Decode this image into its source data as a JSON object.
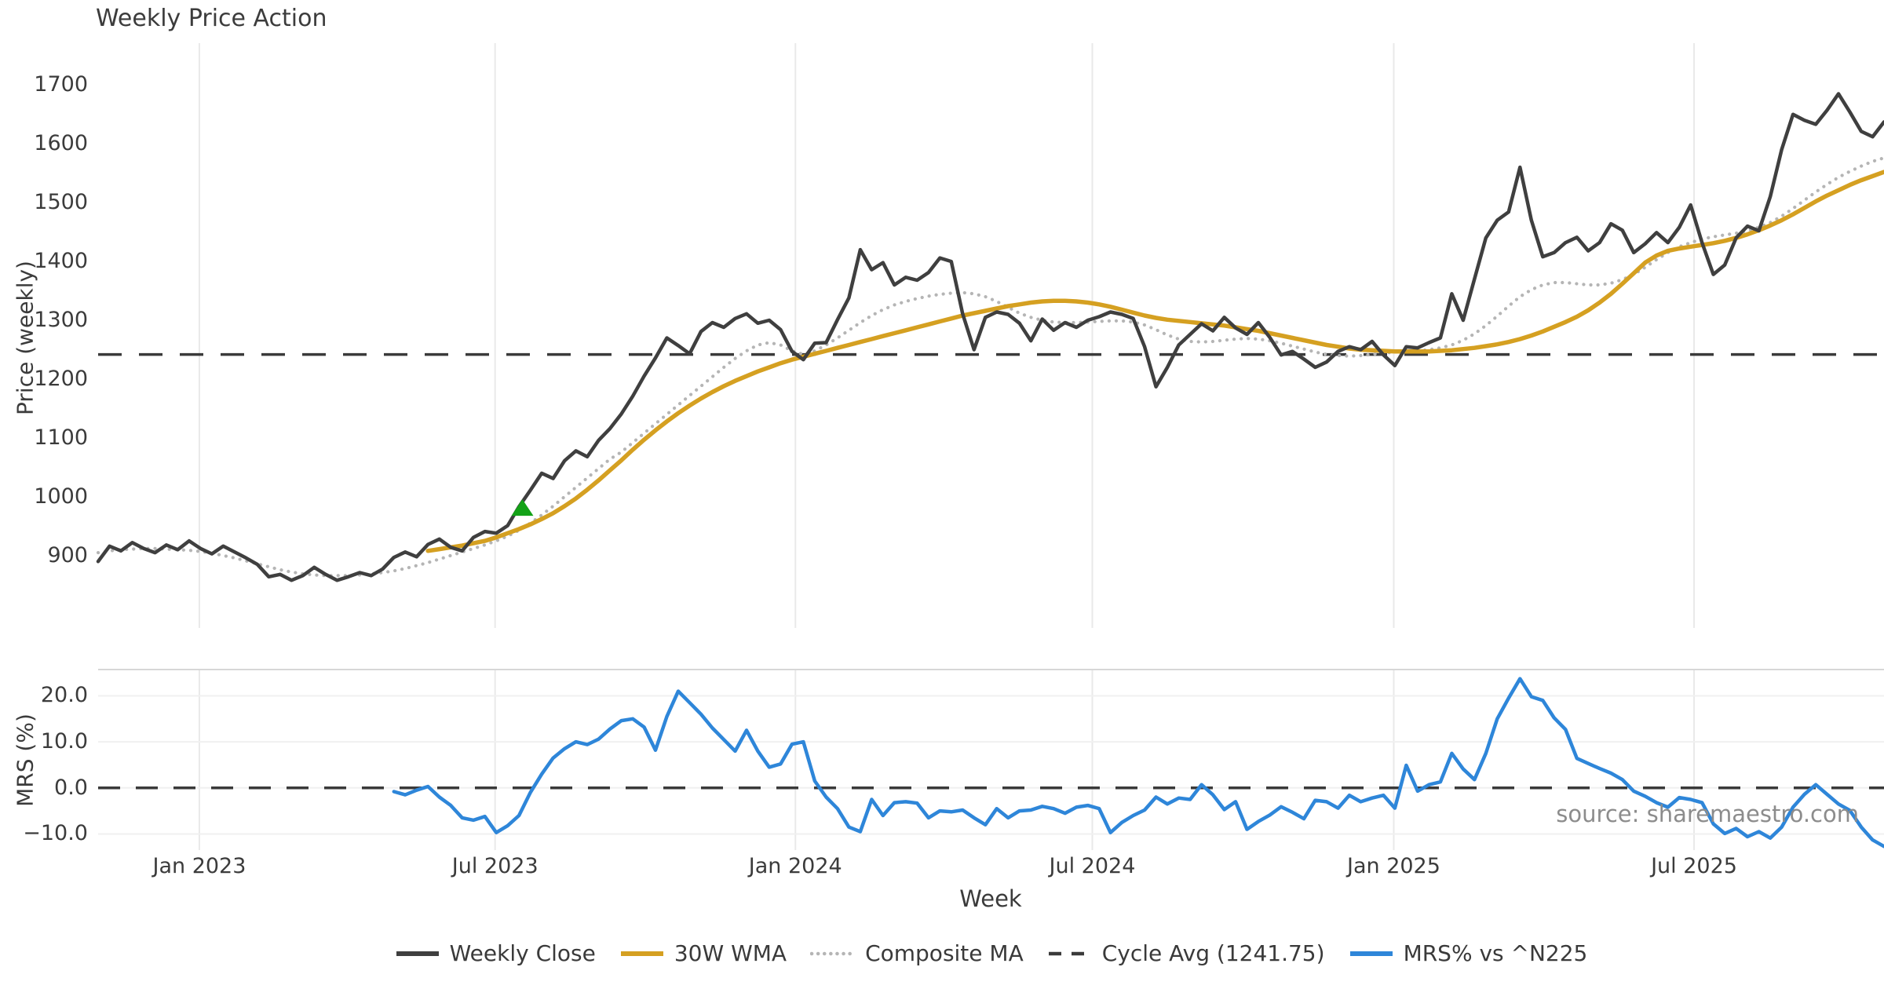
{
  "title": "Weekly Price Action",
  "source_credit": "source: sharemaestro.com",
  "colors": {
    "weekly_close": "#3f3f3f",
    "wma_30w": "#d5a021",
    "composite_ma": "#b5b5b5",
    "cycle_avg": "#3a3a3a",
    "mrs": "#2e86d9",
    "buy_marker": "#13a217",
    "gridline": "#e9e9e9",
    "hgridline": "#f0f0f0",
    "panel_border": "#d7d7d7",
    "text": "#3b3b3b",
    "source_text": "#8c8c8c"
  },
  "legend": [
    {
      "label": "Weekly Close",
      "series": "weekly_close",
      "style": "solid"
    },
    {
      "label": "30W WMA",
      "series": "wma_30w",
      "style": "solid"
    },
    {
      "label": "Composite MA",
      "series": "composite_ma",
      "style": "dotted"
    },
    {
      "label": "Cycle Avg (1241.75)",
      "series": "cycle_avg",
      "style": "dashed"
    },
    {
      "label": "MRS% vs ^N225",
      "series": "mrs",
      "style": "solid"
    }
  ],
  "chart_data": [
    {
      "type": "line",
      "title": "Weekly Price Action",
      "ylabel": "Price (weekly)",
      "xlabel": "Week",
      "ylim": [
        777,
        1771
      ],
      "grid": "vertical-only",
      "legend_position": "bottom-center",
      "weeks_total": 158,
      "y_ticks": [
        {
          "label": "1700",
          "value": 1700
        },
        {
          "label": "1600",
          "value": 1600
        },
        {
          "label": "1500",
          "value": 1500
        },
        {
          "label": "1400",
          "value": 1400
        },
        {
          "label": "1300",
          "value": 1300
        },
        {
          "label": "1200",
          "value": 1200
        },
        {
          "label": "1100",
          "value": 1100
        },
        {
          "label": "1000",
          "value": 1000
        },
        {
          "label": "900",
          "value": 900
        }
      ],
      "x_ticks": [
        {
          "label": "Jan 2023",
          "week": 8.9
        },
        {
          "label": "Jul 2023",
          "week": 34.9
        },
        {
          "label": "Jan 2024",
          "week": 61.3
        },
        {
          "label": "Jul 2024",
          "week": 87.4
        },
        {
          "label": "Jan 2025",
          "week": 113.9
        },
        {
          "label": "Jul 2025",
          "week": 140.3
        }
      ],
      "hline": {
        "label": "Cycle Avg (1241.75)",
        "value": 1241.75,
        "style": "dashed"
      },
      "marker": {
        "name": "buy-signal-triangle",
        "shape": "triangle-up",
        "week": 37.3,
        "value": 981
      },
      "series": [
        {
          "name": "Weekly Close",
          "color": "weekly_close",
          "style": "solid",
          "start_week": 0,
          "values": [
            890,
            916,
            908,
            922,
            912,
            905,
            918,
            910,
            925,
            912,
            903,
            916,
            906,
            896,
            885,
            864,
            868,
            858,
            866,
            880,
            868,
            858,
            864,
            871,
            866,
            877,
            897,
            906,
            898,
            919,
            928,
            914,
            908,
            931,
            941,
            938,
            951,
            983,
            1011,
            1040,
            1031,
            1061,
            1078,
            1068,
            1096,
            1116,
            1141,
            1171,
            1205,
            1236,
            1270,
            1257,
            1243,
            1281,
            1296,
            1288,
            1303,
            1311,
            1295,
            1300,
            1284,
            1247,
            1233,
            1261,
            1262,
            1301,
            1338,
            1420,
            1386,
            1398,
            1360,
            1373,
            1368,
            1381,
            1406,
            1400,
            1311,
            1250,
            1305,
            1314,
            1310,
            1295,
            1265,
            1302,
            1283,
            1296,
            1288,
            1300,
            1306,
            1314,
            1310,
            1303,
            1255,
            1187,
            1220,
            1258,
            1276,
            1294,
            1282,
            1305,
            1287,
            1276,
            1296,
            1271,
            1241,
            1247,
            1234,
            1220,
            1229,
            1247,
            1255,
            1250,
            1264,
            1241,
            1223,
            1255,
            1253,
            1262,
            1270,
            1345,
            1300,
            1370,
            1440,
            1470,
            1484,
            1560,
            1470,
            1408,
            1415,
            1432,
            1441,
            1418,
            1432,
            1464,
            1453,
            1415,
            1430,
            1449,
            1432,
            1458,
            1496,
            1432,
            1378,
            1394,
            1440,
            1460,
            1452,
            1510,
            1590,
            1650,
            1640,
            1633,
            1657,
            1685,
            1654,
            1621,
            1612,
            1637
          ]
        },
        {
          "name": "30W WMA",
          "color": "wma_30w",
          "style": "solid",
          "start_week": 29,
          "values": [
            908,
            911,
            914,
            917,
            921,
            925,
            931,
            938,
            945,
            953,
            962,
            972,
            984,
            997,
            1012,
            1028,
            1045,
            1062,
            1080,
            1097,
            1113,
            1128,
            1142,
            1155,
            1167,
            1178,
            1188,
            1197,
            1205,
            1213,
            1220,
            1227,
            1233,
            1238,
            1243,
            1248,
            1253,
            1258,
            1263,
            1268,
            1273,
            1278,
            1283,
            1288,
            1293,
            1298,
            1303,
            1308,
            1312,
            1316,
            1320,
            1324,
            1327,
            1330,
            1332,
            1333,
            1333,
            1332,
            1330,
            1327,
            1323,
            1318,
            1313,
            1308,
            1304,
            1301,
            1299,
            1297,
            1295,
            1293,
            1291,
            1288,
            1285,
            1282,
            1278,
            1274,
            1270,
            1266,
            1262,
            1258,
            1255,
            1252,
            1250,
            1249,
            1248,
            1247,
            1247,
            1247,
            1247,
            1248,
            1249,
            1251,
            1253,
            1256,
            1259,
            1263,
            1268,
            1274,
            1281,
            1289,
            1297,
            1306,
            1317,
            1330,
            1345,
            1362,
            1380,
            1398,
            1410,
            1418,
            1422,
            1425,
            1428,
            1431,
            1435,
            1440,
            1446,
            1453,
            1461,
            1470,
            1480,
            1491,
            1502,
            1512,
            1521,
            1530,
            1538,
            1545,
            1552
          ]
        },
        {
          "name": "Composite MA",
          "color": "composite_ma",
          "style": "dotted",
          "start_week": 0,
          "values": [
            905,
            908,
            910,
            911,
            912,
            912,
            911,
            910,
            909,
            907,
            904,
            900,
            896,
            891,
            886,
            881,
            876,
            872,
            869,
            867,
            866,
            866,
            866,
            867,
            869,
            871,
            874,
            878,
            883,
            888,
            894,
            900,
            906,
            912,
            918,
            925,
            933,
            943,
            955,
            969,
            984,
            1000,
            1016,
            1032,
            1048,
            1064,
            1076,
            1092,
            1108,
            1124,
            1140,
            1156,
            1172,
            1188,
            1204,
            1220,
            1235,
            1248,
            1258,
            1262,
            1258,
            1248,
            1242,
            1248,
            1258,
            1270,
            1283,
            1296,
            1308,
            1318,
            1326,
            1332,
            1337,
            1341,
            1344,
            1346,
            1347,
            1345,
            1340,
            1332,
            1322,
            1312,
            1305,
            1300,
            1297,
            1296,
            1296,
            1297,
            1298,
            1299,
            1299,
            1297,
            1292,
            1284,
            1275,
            1268,
            1264,
            1263,
            1264,
            1266,
            1268,
            1269,
            1268,
            1265,
            1261,
            1256,
            1251,
            1246,
            1242,
            1240,
            1239,
            1240,
            1242,
            1244,
            1246,
            1247,
            1248,
            1250,
            1253,
            1258,
            1266,
            1277,
            1291,
            1307,
            1324,
            1340,
            1352,
            1360,
            1364,
            1364,
            1362,
            1360,
            1360,
            1363,
            1369,
            1378,
            1390,
            1403,
            1415,
            1425,
            1432,
            1438,
            1442,
            1445,
            1448,
            1452,
            1458,
            1466,
            1477,
            1490,
            1504,
            1518,
            1531,
            1543,
            1553,
            1562,
            1570,
            1576
          ]
        }
      ]
    },
    {
      "type": "line",
      "ylabel": "MRS (%)",
      "xlabel": "Week",
      "ylim": [
        -13.5,
        25.7
      ],
      "weeks_total": 158,
      "y_ticks": [
        {
          "label": "20.0",
          "value": 20
        },
        {
          "label": "10.0",
          "value": 10
        },
        {
          "label": "0.0",
          "value": 0
        },
        {
          "label": "−10.0",
          "value": -10
        }
      ],
      "hline": {
        "label": "zero-line",
        "value": 0,
        "style": "dashed"
      },
      "series": [
        {
          "name": "MRS% vs ^N225",
          "color": "mrs",
          "style": "solid",
          "start_week": 26,
          "values": [
            -0.8,
            -1.5,
            -0.5,
            0.3,
            -2.0,
            -3.8,
            -6.5,
            -7.0,
            -6.2,
            -9.7,
            -8.2,
            -6.0,
            -1.0,
            3.0,
            6.5,
            8.5,
            10.0,
            9.4,
            10.6,
            12.8,
            14.6,
            15.0,
            13.2,
            8.2,
            15.5,
            21.0,
            18.5,
            16.0,
            13.0,
            10.5,
            8.0,
            12.5,
            8.0,
            4.5,
            5.2,
            9.5,
            10.0,
            1.5,
            -2.0,
            -4.5,
            -8.5,
            -9.5,
            -2.5,
            -6.0,
            -3.2,
            -3.0,
            -3.3,
            -6.5,
            -5.0,
            -5.2,
            -4.8,
            -6.5,
            -8.0,
            -4.5,
            -6.5,
            -5.0,
            -4.8,
            -4.0,
            -4.5,
            -5.5,
            -4.2,
            -3.8,
            -4.5,
            -9.7,
            -7.5,
            -6.0,
            -4.8,
            -2.0,
            -3.5,
            -2.2,
            -2.5,
            0.7,
            -1.5,
            -4.7,
            -3.0,
            -9.0,
            -7.3,
            -5.9,
            -4.1,
            -5.3,
            -6.7,
            -2.7,
            -3.0,
            -4.4,
            -1.6,
            -3.0,
            -2.2,
            -1.6,
            -4.4,
            4.9,
            -0.7,
            0.7,
            1.3,
            7.5,
            4.1,
            1.8,
            7.5,
            15.0,
            19.5,
            23.7,
            19.8,
            19.0,
            15.2,
            12.7,
            6.4,
            5.3,
            4.2,
            3.2,
            1.8,
            -0.7,
            -1.8,
            -3.2,
            -4.2,
            -2.1,
            -2.5,
            -3.2,
            -7.8,
            -9.9,
            -8.8,
            -10.6,
            -9.5,
            -10.9,
            -8.5,
            -4.2,
            -1.4,
            0.7,
            -1.4,
            -3.5,
            -4.9,
            -8.5,
            -11.3,
            -12.7
          ]
        }
      ]
    }
  ]
}
